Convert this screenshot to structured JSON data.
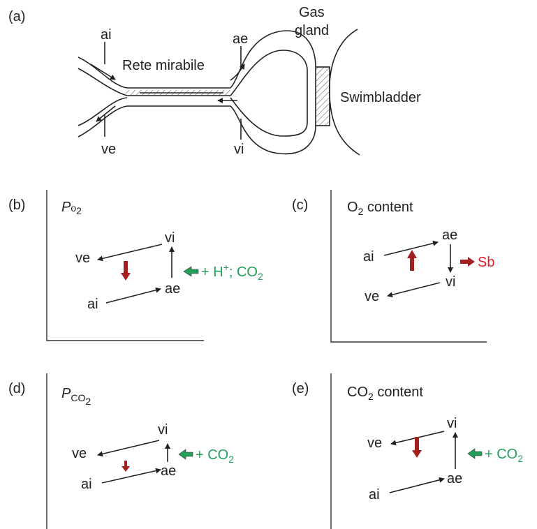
{
  "panel_a": {
    "label": "(a)",
    "ai": "ai",
    "ae": "ae",
    "rete": "Rete mirabile",
    "gland": [
      "Gas",
      "gland"
    ],
    "swimbladder": "Swimbladder",
    "ve": "ve",
    "vi": "vi"
  },
  "panels": [
    {
      "label": "(b)",
      "title": [
        "P",
        "o",
        "2"
      ],
      "points": {
        "ve": "ve",
        "vi": "vi",
        "ai": "ai",
        "ae": "ae"
      },
      "annotation": [
        "+ H",
        "+",
        "; CO",
        "2"
      ]
    },
    {
      "label": "(c)",
      "title": [
        "O",
        "2",
        " content"
      ],
      "points": {
        "ai": "ai",
        "ae": "ae",
        "vi": "vi",
        "ve": "ve"
      },
      "annotation": [
        "Sb"
      ]
    },
    {
      "label": "(d)",
      "title": [
        "P",
        "CO",
        "2"
      ],
      "points": {
        "ve": "ve",
        "vi": "vi",
        "ai": "ai",
        "ae": "ae"
      },
      "annotation": [
        "+ CO",
        "2"
      ]
    },
    {
      "label": "(e)",
      "title": [
        "CO",
        "2",
        " content"
      ],
      "points": {
        "ve": "ve",
        "vi": "vi",
        "ai": "ai",
        "ae": "ae"
      },
      "annotation": [
        "+ CO",
        "2"
      ]
    }
  ]
}
